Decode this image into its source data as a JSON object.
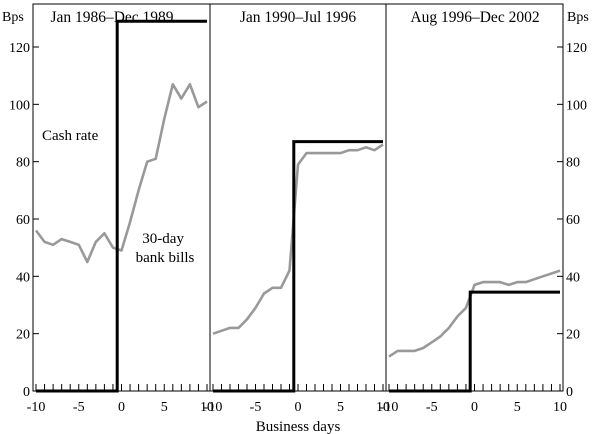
{
  "chart_data": {
    "type": "line",
    "y_unit_left": "Bps",
    "y_unit_right": "Bps",
    "xlabel": "Business days",
    "ylim": [
      0,
      135
    ],
    "y_ticks": [
      0,
      20,
      40,
      60,
      80,
      100,
      120
    ],
    "x_ticks": [
      -10,
      -5,
      0,
      5,
      10
    ],
    "xlim": [
      -10,
      10
    ],
    "colors": {
      "cash_rate": "#000000",
      "bank_bills": "#999999"
    },
    "panels": [
      {
        "title": "Jan 1986–Dec 1989",
        "annotations": {
          "cash_rate": "Cash rate",
          "bank_bills": "30-day bank bills"
        },
        "cash_rate": {
          "x": [
            -10,
            -0.5,
            -0.5,
            10
          ],
          "y": [
            0,
            0,
            129,
            129
          ]
        },
        "bank_bills": {
          "x": [
            -10,
            -9,
            -8,
            -7,
            -6,
            -5,
            -4,
            -3,
            -2,
            -1,
            0,
            1,
            2,
            3,
            4,
            5,
            6,
            7,
            8,
            9,
            10
          ],
          "y": [
            56,
            52,
            51,
            53,
            52,
            51,
            45,
            52,
            55,
            50,
            49,
            59,
            70,
            80,
            81,
            95,
            107,
            102,
            107,
            99,
            101
          ]
        }
      },
      {
        "title": "Jan 1990–Jul 1996",
        "cash_rate": {
          "x": [
            -10,
            -0.5,
            -0.5,
            10
          ],
          "y": [
            0,
            0,
            87,
            87
          ]
        },
        "bank_bills": {
          "x": [
            -10,
            -9,
            -8,
            -7,
            -6,
            -5,
            -4,
            -3,
            -2,
            -1,
            0,
            1,
            2,
            3,
            4,
            5,
            6,
            7,
            8,
            9,
            10
          ],
          "y": [
            20,
            21,
            22,
            22,
            25,
            29,
            34,
            36,
            36,
            42,
            79,
            83,
            83,
            83,
            83,
            83,
            84,
            84,
            85,
            84,
            86
          ]
        }
      },
      {
        "title": "Aug 1996–Dec 2002",
        "cash_rate": {
          "x": [
            -10,
            -0.5,
            -0.5,
            10
          ],
          "y": [
            0,
            0,
            34.5,
            34.5
          ]
        },
        "bank_bills": {
          "x": [
            -10,
            -9,
            -8,
            -7,
            -6,
            -5,
            -4,
            -3,
            -2,
            -1,
            0,
            1,
            2,
            3,
            4,
            5,
            6,
            7,
            8,
            9,
            10
          ],
          "y": [
            12,
            14,
            14,
            14,
            15,
            17,
            19,
            22,
            26,
            29,
            37,
            38,
            38,
            38,
            37,
            38,
            38,
            39,
            40,
            41,
            42
          ]
        }
      }
    ]
  }
}
